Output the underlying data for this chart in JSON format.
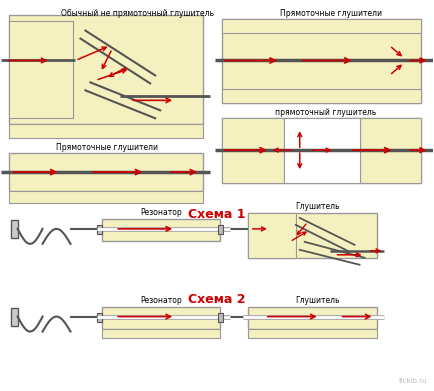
{
  "bg_color": "#ffffff",
  "box_fill": "#f5f0c0",
  "box_edge": "#999999",
  "arrow_color": "#cc0000",
  "line_color": "#555555",
  "text_color": "#000000",
  "label_color": "#cc0000",
  "label1_top": "Обычный не прямоточный глушитель",
  "label2_top": "Прямоточные глушители",
  "label3_left": "Прямоточные глушители",
  "label4_right": "прямоточный глушитель",
  "schema1_title": "Схема 1",
  "schema2_title": "Схема 2",
  "resonator_label": "Резонатор",
  "muffler_label": "Глушитель",
  "watermark": "flckib.ru",
  "fig_width": 4.34,
  "fig_height": 3.91
}
